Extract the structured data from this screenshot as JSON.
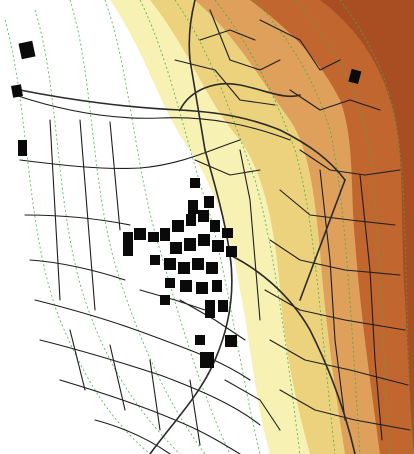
{
  "map": {
    "kind": "cadastral-terrain-map",
    "labels": [],
    "colors": {
      "low_terrain": "#ffffff",
      "mid_low_terrain": "#f7f2b3",
      "mid_terrain": "#ecd27c",
      "mid_high_terrain": "#dea05a",
      "high_terrain": "#c2662f",
      "peak_terrain": "#a94e22",
      "contour_line": "#3fae4a",
      "parcel_line": "#1e1e1e",
      "building": "#0a0a0a"
    },
    "layers": [
      "elevation-shading",
      "contour-lines",
      "parcel-boundaries",
      "roads",
      "buildings"
    ]
  }
}
